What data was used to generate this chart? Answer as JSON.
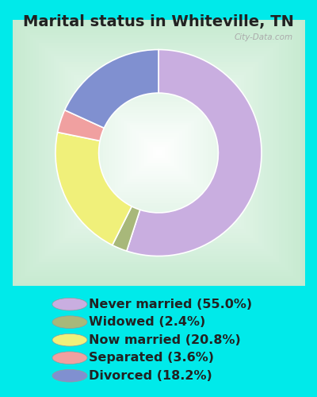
{
  "title": "Marital status in Whiteville, TN",
  "slices": [
    55.0,
    2.4,
    20.8,
    3.6,
    18.2
  ],
  "labels": [
    "Never married (55.0%)",
    "Widowed (2.4%)",
    "Now married (20.8%)",
    "Separated (3.6%)",
    "Divorced (18.2%)"
  ],
  "colors": [
    "#c9aee0",
    "#a8b87a",
    "#f0f07a",
    "#f0a0a0",
    "#8090d0"
  ],
  "bg_outer": "#00eaea",
  "bg_chart_color1": "#c8e8d0",
  "bg_chart_color2": "#f0faf4",
  "watermark": "City-Data.com",
  "donut_width": 0.42,
  "start_angle": 90,
  "title_fontsize": 14,
  "legend_fontsize": 11.5,
  "title_color": "#222222"
}
